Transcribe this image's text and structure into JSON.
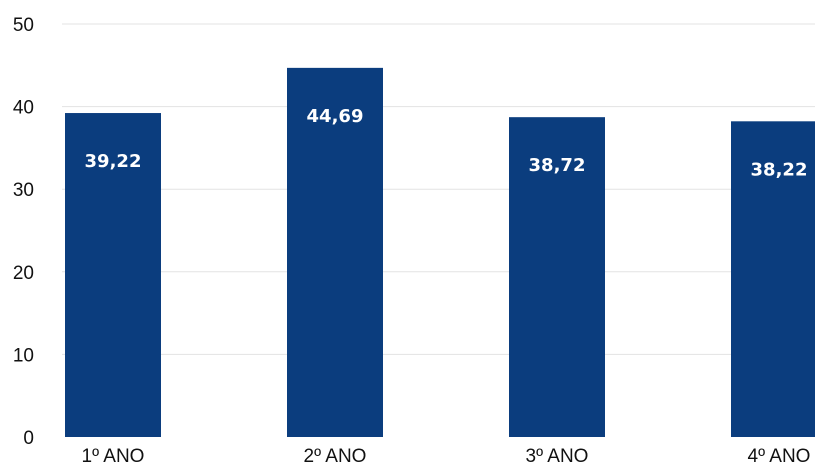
{
  "chart_data": {
    "type": "bar",
    "title": "",
    "xlabel": "",
    "ylabel": "",
    "categories": [
      "1º ANO",
      "2º ANO",
      "3º ANO",
      "4º ANO"
    ],
    "values": [
      39.22,
      44.69,
      38.72,
      38.22
    ],
    "data_labels": [
      "39,22",
      "44,69",
      "38,72",
      "38,22"
    ],
    "ylim": [
      0,
      50
    ],
    "y_ticks": [
      0,
      10,
      20,
      30,
      40,
      50
    ],
    "grid": true,
    "legend": "none",
    "bar_color": "#0b3d7e",
    "grid_color": "#e3e3e3"
  }
}
